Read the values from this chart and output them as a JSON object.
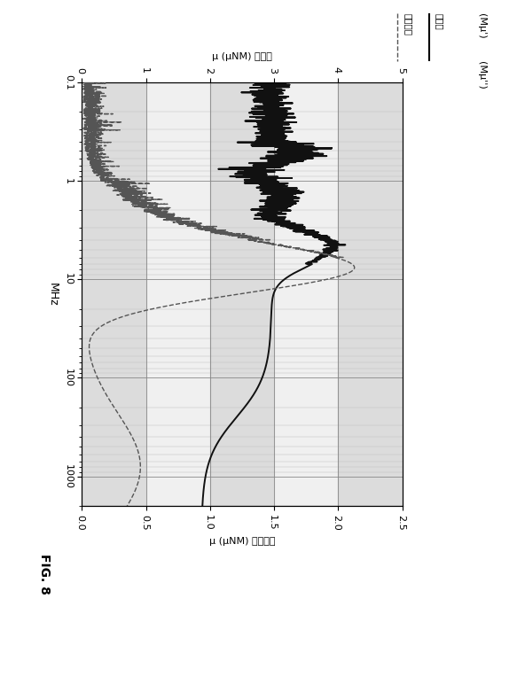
{
  "title": "FIG. 8",
  "freq_label": "MHz",
  "ylabel_bottom": "μ (μNM) 透磁率",
  "ylabel_top": "μ (μNM) 损失係数",
  "legend_solid": "透磁率",
  "legend_dashed": "损失係数",
  "top_label_left": "(Mμ')",
  "top_label_right": "(Mμ'')",
  "freq_min": 0.1,
  "freq_max": 2000,
  "mu_prime_min": 0,
  "mu_prime_max": 5,
  "mu_pp_min": 0,
  "mu_pp_max": 2.5,
  "mu_prime_ticks": [
    0,
    1,
    2,
    3,
    4,
    5
  ],
  "mu_pp_ticks": [
    0,
    0.5,
    1.0,
    1.5,
    2.0,
    2.5
  ],
  "freq_ticks": [
    0.1,
    1,
    10,
    100,
    1000
  ],
  "band_colors_dark": "#c0c0c0",
  "band_colors_light": "#e4e4e4",
  "curve1_color": "#111111",
  "curve2_color": "#555555",
  "grid_major_color": "#888888",
  "grid_minor_color": "#bbbbbb",
  "background": "#ffffff"
}
